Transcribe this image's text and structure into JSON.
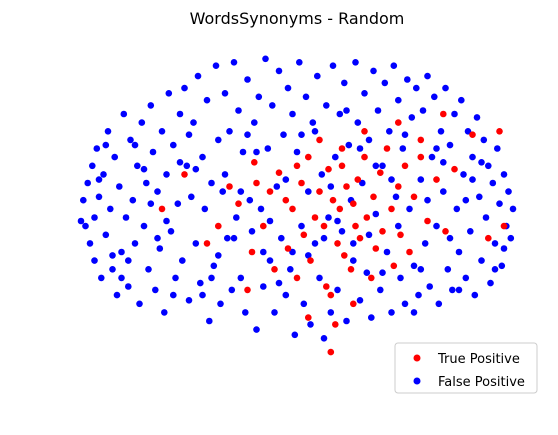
{
  "chart_data": {
    "type": "scatter",
    "title": "WordsSynonyms - Random",
    "xlabel": "",
    "ylabel": "",
    "xlim": [
      -1.0,
      1.0
    ],
    "ylim": [
      -1.0,
      1.0
    ],
    "axes_visible": false,
    "grid": false,
    "legend_position": "bottom-right",
    "series": [
      {
        "name": "True Positive",
        "color": "#ff0000",
        "points": [
          [
            -0.5,
            0.25
          ],
          [
            -0.3,
            0.18
          ],
          [
            -0.26,
            0.08
          ],
          [
            -0.2,
            -0.2
          ],
          [
            -0.19,
            0.32
          ],
          [
            -0.18,
            0.2
          ],
          [
            -0.15,
            -0.05
          ],
          [
            -0.12,
            0.15
          ],
          [
            -0.1,
            -0.3
          ],
          [
            -0.08,
            0.26
          ],
          [
            -0.05,
            0.1
          ],
          [
            -0.04,
            -0.18
          ],
          [
            -0.02,
            0.05
          ],
          [
            0.0,
            -0.35
          ],
          [
            0.02,
            0.2
          ],
          [
            0.03,
            -0.1
          ],
          [
            0.05,
            0.35
          ],
          [
            0.06,
            -0.25
          ],
          [
            0.08,
            0.0
          ],
          [
            0.1,
            0.15
          ],
          [
            0.12,
            -0.05
          ],
          [
            0.13,
            -0.4
          ],
          [
            0.14,
            0.28
          ],
          [
            0.15,
            -0.45
          ],
          [
            0.15,
            -0.78
          ],
          [
            0.16,
            0.1
          ],
          [
            0.17,
            -0.62
          ],
          [
            0.18,
            -0.15
          ],
          [
            0.19,
            0.05
          ],
          [
            0.2,
            0.3
          ],
          [
            0.21,
            -0.22
          ],
          [
            0.22,
            0.18
          ],
          [
            0.24,
            -0.3
          ],
          [
            0.25,
            0.08
          ],
          [
            0.26,
            -0.05
          ],
          [
            0.27,
            0.22
          ],
          [
            0.28,
            -0.12
          ],
          [
            0.3,
            0.35
          ],
          [
            0.31,
            0.0
          ],
          [
            0.33,
            -0.35
          ],
          [
            0.34,
            0.12
          ],
          [
            0.35,
            -0.18
          ],
          [
            0.37,
            0.26
          ],
          [
            0.38,
            -0.08
          ],
          [
            0.4,
            0.4
          ],
          [
            0.42,
            0.05
          ],
          [
            0.43,
            -0.28
          ],
          [
            0.45,
            0.18
          ],
          [
            0.46,
            -0.1
          ],
          [
            0.48,
            0.3
          ],
          [
            0.5,
            -0.2
          ],
          [
            0.52,
            0.12
          ],
          [
            0.55,
            0.45
          ],
          [
            0.58,
            -0.02
          ],
          [
            0.62,
            0.22
          ],
          [
            0.65,
            0.6
          ],
          [
            0.66,
            -0.08
          ],
          [
            0.7,
            0.28
          ],
          [
            0.78,
            0.48
          ],
          [
            0.85,
            -0.12
          ],
          [
            0.9,
            0.5
          ],
          [
            0.92,
            -0.05
          ],
          [
            0.55,
            0.35
          ],
          [
            0.3,
            0.5
          ],
          [
            -0.35,
            -0.05
          ],
          [
            -0.4,
            -0.15
          ],
          [
            0.1,
            0.45
          ],
          [
            0.05,
            -0.58
          ],
          [
            0.25,
            -0.5
          ],
          [
            -0.22,
            -0.42
          ],
          [
            -0.6,
            0.05
          ],
          [
            0.45,
            0.55
          ],
          [
            0.2,
            0.4
          ],
          [
            0.0,
            0.3
          ]
        ]
      },
      {
        "name": "False Positive",
        "color": "#0000ff",
        "points": [
          [
            -0.95,
            0.1
          ],
          [
            -0.94,
            -0.05
          ],
          [
            -0.93,
            0.2
          ],
          [
            -0.92,
            -0.15
          ],
          [
            -0.91,
            0.3
          ],
          [
            -0.9,
            0.0
          ],
          [
            -0.9,
            -0.25
          ],
          [
            -0.89,
            0.4
          ],
          [
            -0.88,
            0.12
          ],
          [
            -0.87,
            -0.35
          ],
          [
            -0.86,
            0.25
          ],
          [
            -0.85,
            -0.1
          ],
          [
            -0.84,
            0.5
          ],
          [
            -0.83,
            0.05
          ],
          [
            -0.82,
            -0.3
          ],
          [
            -0.81,
            0.35
          ],
          [
            -0.8,
            -0.45
          ],
          [
            -0.79,
            0.18
          ],
          [
            -0.78,
            -0.2
          ],
          [
            -0.77,
            0.6
          ],
          [
            -0.76,
            0.0
          ],
          [
            -0.75,
            -0.4
          ],
          [
            -0.74,
            0.45
          ],
          [
            -0.73,
            0.1
          ],
          [
            -0.72,
            -0.15
          ],
          [
            -0.71,
            0.3
          ],
          [
            -0.7,
            -0.5
          ],
          [
            -0.69,
            0.55
          ],
          [
            -0.68,
            -0.05
          ],
          [
            -0.67,
            0.2
          ],
          [
            -0.66,
            -0.3
          ],
          [
            -0.65,
            0.65
          ],
          [
            -0.64,
            0.38
          ],
          [
            -0.63,
            -0.42
          ],
          [
            -0.62,
            0.15
          ],
          [
            -0.61,
            -0.18
          ],
          [
            -0.6,
            0.5
          ],
          [
            -0.59,
            -0.55
          ],
          [
            -0.58,
            0.25
          ],
          [
            -0.57,
            0.72
          ],
          [
            -0.56,
            -0.08
          ],
          [
            -0.55,
            0.42
          ],
          [
            -0.54,
            -0.35
          ],
          [
            -0.53,
            0.08
          ],
          [
            -0.52,
            0.6
          ],
          [
            -0.51,
            -0.25
          ],
          [
            -0.5,
            0.75
          ],
          [
            -0.49,
            0.3
          ],
          [
            -0.48,
            -0.48
          ],
          [
            -0.47,
            0.12
          ],
          [
            -0.46,
            0.55
          ],
          [
            -0.45,
            -0.15
          ],
          [
            -0.44,
            0.82
          ],
          [
            -0.43,
            -0.38
          ],
          [
            -0.42,
            0.35
          ],
          [
            -0.41,
            0.05
          ],
          [
            -0.4,
            0.68
          ],
          [
            -0.39,
            -0.6
          ],
          [
            -0.38,
            0.2
          ],
          [
            -0.37,
            -0.28
          ],
          [
            -0.36,
            0.88
          ],
          [
            -0.35,
            0.45
          ],
          [
            -0.34,
            -0.5
          ],
          [
            -0.33,
            0.15
          ],
          [
            -0.32,
            0.72
          ],
          [
            -0.31,
            -0.12
          ],
          [
            -0.3,
            0.5
          ],
          [
            -0.29,
            -0.42
          ],
          [
            -0.28,
            0.9
          ],
          [
            -0.27,
            0.0
          ],
          [
            -0.26,
            0.62
          ],
          [
            -0.25,
            -0.35
          ],
          [
            -0.24,
            0.38
          ],
          [
            -0.23,
            -0.55
          ],
          [
            -0.22,
            0.8
          ],
          [
            -0.21,
            0.1
          ],
          [
            -0.2,
            -0.08
          ],
          [
            -0.19,
            0.55
          ],
          [
            -0.18,
            -0.65
          ],
          [
            -0.17,
            0.7
          ],
          [
            -0.16,
            0.05
          ],
          [
            -0.15,
            -0.4
          ],
          [
            -0.14,
            0.92
          ],
          [
            -0.13,
            0.4
          ],
          [
            -0.12,
            -0.25
          ],
          [
            -0.11,
            0.65
          ],
          [
            -0.1,
            -0.55
          ],
          [
            -0.09,
            0.18
          ],
          [
            -0.08,
            0.85
          ],
          [
            -0.07,
            -0.12
          ],
          [
            -0.06,
            0.48
          ],
          [
            -0.05,
            -0.45
          ],
          [
            -0.04,
            0.75
          ],
          [
            -0.03,
            -0.3
          ],
          [
            -0.02,
            0.6
          ],
          [
            -0.01,
            -0.68
          ],
          [
            0.0,
            0.38
          ],
          [
            0.01,
            0.9
          ],
          [
            0.02,
            -0.05
          ],
          [
            0.03,
            -0.5
          ],
          [
            0.04,
            0.7
          ],
          [
            0.05,
            0.15
          ],
          [
            0.06,
            -0.62
          ],
          [
            0.07,
            0.55
          ],
          [
            0.08,
            -0.15
          ],
          [
            0.09,
            0.82
          ],
          [
            0.1,
            -0.35
          ],
          [
            0.11,
            0.25
          ],
          [
            0.12,
            -0.7
          ],
          [
            0.13,
            0.65
          ],
          [
            0.14,
            0.0
          ],
          [
            0.15,
            -0.55
          ],
          [
            0.16,
            0.88
          ],
          [
            0.17,
            0.35
          ],
          [
            0.18,
            -0.42
          ],
          [
            0.19,
            0.6
          ],
          [
            0.2,
            -0.08
          ],
          [
            0.21,
            0.78
          ],
          [
            0.22,
            -0.6
          ],
          [
            0.23,
            0.42
          ],
          [
            0.24,
            0.1
          ],
          [
            0.25,
            -0.25
          ],
          [
            0.26,
            0.9
          ],
          [
            0.27,
            0.55
          ],
          [
            0.28,
            -0.48
          ],
          [
            0.29,
            0.2
          ],
          [
            0.3,
            0.72
          ],
          [
            0.31,
            -0.32
          ],
          [
            0.32,
            0.45
          ],
          [
            0.33,
            -0.58
          ],
          [
            0.34,
            0.85
          ],
          [
            0.35,
            0.02
          ],
          [
            0.36,
            0.62
          ],
          [
            0.37,
            -0.42
          ],
          [
            0.38,
            0.3
          ],
          [
            0.39,
            0.78
          ],
          [
            0.4,
            -0.2
          ],
          [
            0.41,
            0.5
          ],
          [
            0.42,
            -0.55
          ],
          [
            0.43,
            0.88
          ],
          [
            0.44,
            0.12
          ],
          [
            0.45,
            0.68
          ],
          [
            0.46,
            -0.35
          ],
          [
            0.47,
            0.4
          ],
          [
            0.48,
            -0.5
          ],
          [
            0.49,
            0.8
          ],
          [
            0.5,
            0.05
          ],
          [
            0.51,
            0.58
          ],
          [
            0.52,
            -0.28
          ],
          [
            0.53,
            0.75
          ],
          [
            0.54,
            -0.45
          ],
          [
            0.55,
            0.22
          ],
          [
            0.56,
            0.62
          ],
          [
            0.57,
            -0.15
          ],
          [
            0.58,
            0.82
          ],
          [
            0.59,
            -0.4
          ],
          [
            0.6,
            0.35
          ],
          [
            0.61,
            0.7
          ],
          [
            0.62,
            -0.05
          ],
          [
            0.63,
            -0.5
          ],
          [
            0.64,
            0.5
          ],
          [
            0.65,
            0.15
          ],
          [
            0.66,
            0.75
          ],
          [
            0.67,
            -0.3
          ],
          [
            0.68,
            0.42
          ],
          [
            0.69,
            -0.42
          ],
          [
            0.7,
            0.6
          ],
          [
            0.71,
            0.05
          ],
          [
            0.72,
            -0.2
          ],
          [
            0.73,
            0.68
          ],
          [
            0.74,
            0.25
          ],
          [
            0.75,
            -0.35
          ],
          [
            0.76,
            0.5
          ],
          [
            0.77,
            -0.08
          ],
          [
            0.78,
            0.35
          ],
          [
            0.79,
            -0.45
          ],
          [
            0.8,
            0.58
          ],
          [
            0.81,
            0.12
          ],
          [
            0.82,
            -0.25
          ],
          [
            0.83,
            0.45
          ],
          [
            0.84,
            0.0
          ],
          [
            0.85,
            0.3
          ],
          [
            0.86,
            -0.38
          ],
          [
            0.87,
            0.2
          ],
          [
            0.88,
            -0.15
          ],
          [
            0.89,
            0.4
          ],
          [
            0.9,
            0.08
          ],
          [
            0.91,
            -0.28
          ],
          [
            0.92,
            0.25
          ],
          [
            0.93,
            -0.05
          ],
          [
            0.94,
            0.15
          ],
          [
            0.95,
            -0.12
          ],
          [
            0.96,
            0.05
          ],
          [
            -0.96,
            -0.02
          ],
          [
            -0.85,
            0.42
          ],
          [
            -0.75,
            -0.25
          ],
          [
            -0.65,
            0.08
          ],
          [
            -0.55,
            -0.45
          ],
          [
            -0.45,
            0.28
          ],
          [
            -0.35,
            -0.22
          ],
          [
            -0.25,
            0.15
          ],
          [
            -0.15,
            -0.2
          ],
          [
            -0.05,
            0.22
          ],
          [
            0.05,
            -0.22
          ],
          [
            0.15,
            0.18
          ],
          [
            0.25,
            -0.15
          ],
          [
            0.35,
            0.3
          ],
          [
            0.45,
            -0.05
          ],
          [
            0.55,
            -0.3
          ],
          [
            0.65,
            0.32
          ],
          [
            0.75,
            0.1
          ],
          [
            -0.82,
            -0.22
          ],
          [
            -0.72,
            0.42
          ],
          [
            -0.62,
            -0.12
          ],
          [
            -0.52,
            0.32
          ],
          [
            -0.42,
            -0.45
          ],
          [
            -0.32,
            0.25
          ],
          [
            -0.22,
            0.48
          ],
          [
            -0.12,
            -0.02
          ],
          [
            -0.02,
            -0.2
          ],
          [
            0.08,
            0.5
          ],
          [
            0.18,
            -0.02
          ],
          [
            0.28,
            0.4
          ],
          [
            0.38,
            -0.32
          ],
          [
            0.48,
            0.48
          ],
          [
            0.58,
            0.1
          ],
          [
            0.68,
            -0.12
          ],
          [
            0.78,
            0.22
          ],
          [
            0.88,
            -0.3
          ],
          [
            -0.88,
            0.22
          ],
          [
            -0.78,
            -0.35
          ],
          [
            -0.68,
            0.28
          ],
          [
            -0.58,
            -0.02
          ],
          [
            -0.48,
            0.48
          ],
          [
            -0.38,
            -0.35
          ],
          [
            -0.28,
            -0.12
          ],
          [
            -0.18,
            0.38
          ],
          [
            -0.08,
            -0.38
          ],
          [
            0.02,
            0.48
          ],
          [
            0.12,
            -0.12
          ],
          [
            0.22,
            0.62
          ],
          [
            0.32,
            -0.1
          ],
          [
            0.42,
            0.22
          ],
          [
            0.52,
            -0.55
          ],
          [
            0.62,
            0.4
          ],
          [
            0.72,
            -0.42
          ],
          [
            0.82,
            0.32
          ],
          [
            0.92,
            -0.18
          ]
        ]
      }
    ]
  }
}
